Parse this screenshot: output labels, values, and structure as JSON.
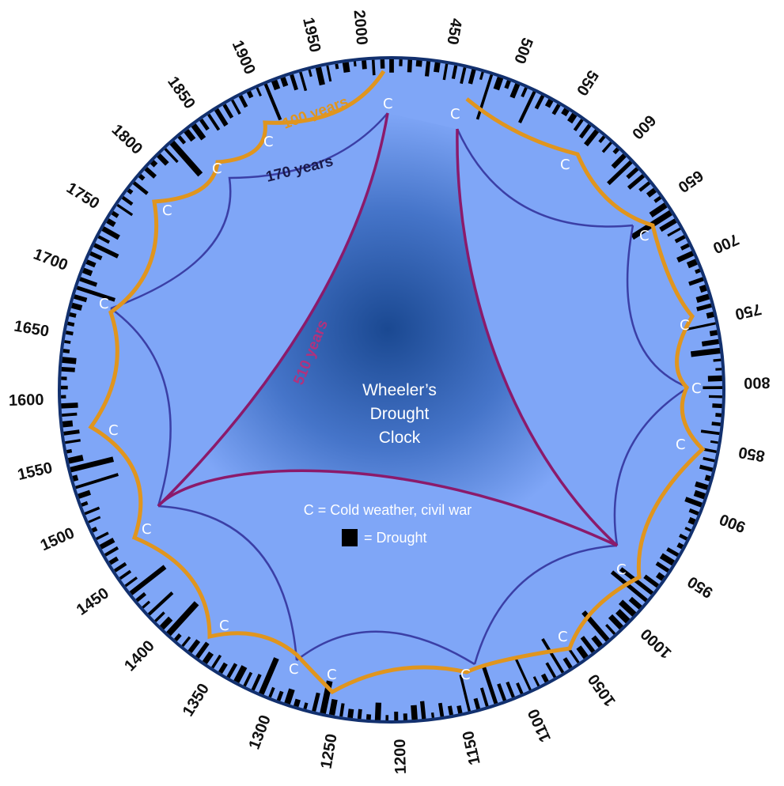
{
  "title": {
    "line1": "Wheeler’s",
    "line2": "Drought",
    "line3": "Clock"
  },
  "legend": {
    "cold_text": "C = Cold weather, civil war",
    "drought_text": "= Drought"
  },
  "cycles": {
    "c100": {
      "label": "100 years",
      "color": "#e0951e"
    },
    "c170": {
      "label": "170 years",
      "color": "#3b3fa6"
    },
    "c510": {
      "label": "510 years",
      "color": "#8b1a6b"
    }
  },
  "c_marker": "C",
  "year_labels": [
    "2000",
    "450",
    "500",
    "550",
    "600",
    "650",
    "700",
    "750",
    "800",
    "850",
    "900",
    "950",
    "1000",
    "1050",
    "1100",
    "1150",
    "1200",
    "1250",
    "1300",
    "1350",
    "1400",
    "1450",
    "1500",
    "1550",
    "1600",
    "1650",
    "1700",
    "1750",
    "1800",
    "1850",
    "1900",
    "1950"
  ],
  "colors": {
    "disc_outer": "#7fa6f7",
    "disc_center": "#0f3e86",
    "rim": "#12306e",
    "drought": "#000000",
    "c_text": "#ffffff"
  }
}
